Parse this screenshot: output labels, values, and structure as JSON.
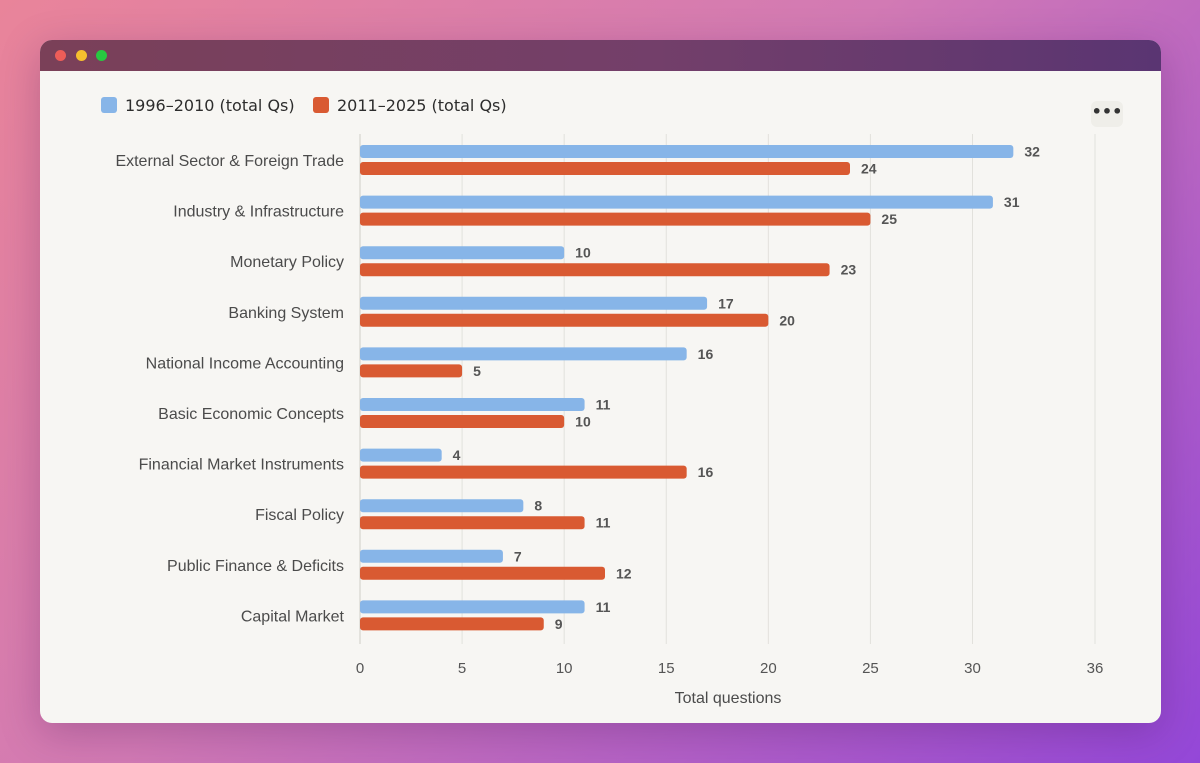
{
  "window": {
    "traffic_lights": [
      {
        "name": "close",
        "color": "#ee5d58"
      },
      {
        "name": "minimize",
        "color": "#f5bf2e"
      },
      {
        "name": "zoom",
        "color": "#27c941"
      }
    ]
  },
  "more_button": {
    "icon": "more-horizontal-icon",
    "label": "•••"
  },
  "chart_data": {
    "type": "bar",
    "orientation": "horizontal",
    "categories": [
      "External Sector & Foreign Trade",
      "Industry & Infrastructure",
      "Monetary Policy",
      "Banking System",
      "National Income Accounting",
      "Basic Economic Concepts",
      "Financial Market Instruments",
      "Fiscal Policy",
      "Public Finance & Deficits",
      "Capital Market"
    ],
    "series": [
      {
        "name": "1996–2010 (total Qs)",
        "color": "#87b5e8",
        "values": [
          32,
          31,
          10,
          17,
          16,
          11,
          4,
          8,
          7,
          11
        ]
      },
      {
        "name": "2011–2025 (total Qs)",
        "color": "#d95a32",
        "values": [
          24,
          25,
          23,
          20,
          5,
          10,
          16,
          11,
          12,
          9
        ]
      }
    ],
    "xlabel": "Total questions",
    "ylabel": "",
    "xlim": [
      0,
      36
    ],
    "xticks": [
      0,
      5,
      10,
      15,
      20,
      25,
      30,
      36
    ],
    "grid": "vertical",
    "legend_position": "top-left",
    "data_labels": true
  }
}
